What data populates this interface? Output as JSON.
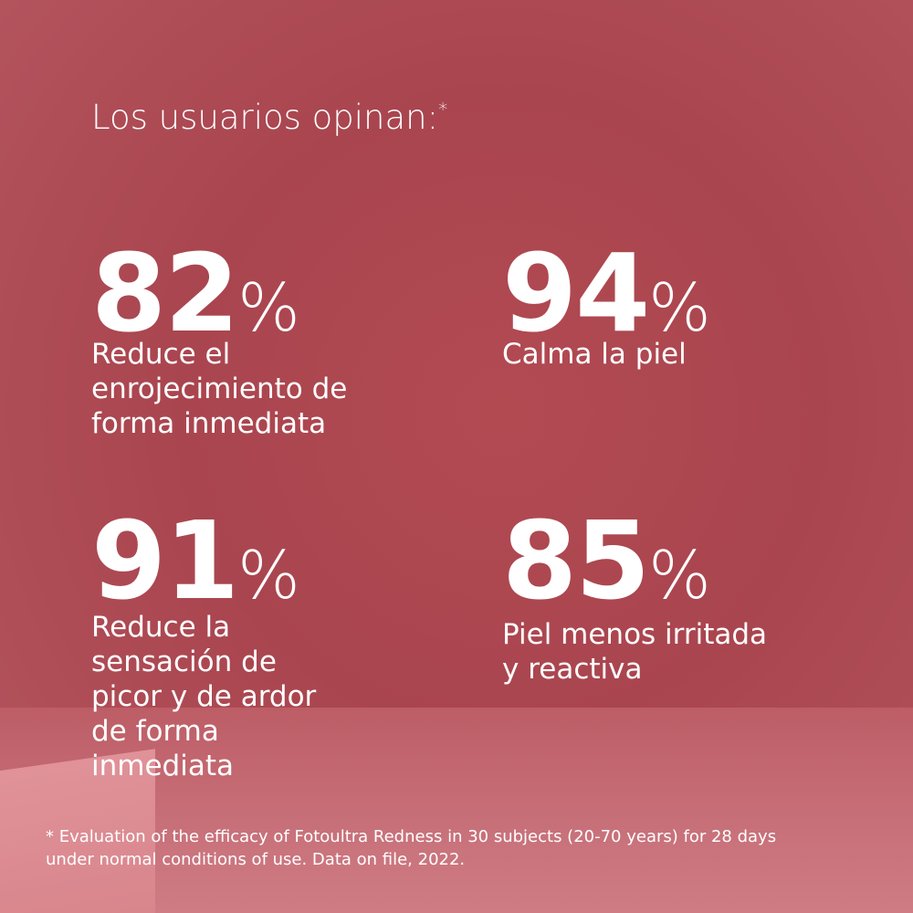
{
  "header": {
    "title": "Los usuarios opinan:",
    "title_mark": "*"
  },
  "stats": [
    {
      "value": 82,
      "unit": "%",
      "description": [
        "Reduce el",
        "enrojecimiento de",
        "forma inmediata"
      ]
    },
    {
      "value": 94,
      "unit": "%",
      "description": [
        "Calma la piel"
      ]
    },
    {
      "value": 91,
      "unit": "%",
      "description": [
        "Reduce la",
        "sensación de",
        "picor y de ardor",
        "de forma",
        "inmediata"
      ]
    },
    {
      "value": 85,
      "unit": "%",
      "description": [
        "Piel menos irritada",
        "y reactiva"
      ]
    }
  ],
  "footnote": [
    "* Evaluation of the efficacy of Fotoultra Redness in 30 subjects (20-70 years) for 28 days",
    "under normal conditions of use. Data on file, 2022."
  ]
}
